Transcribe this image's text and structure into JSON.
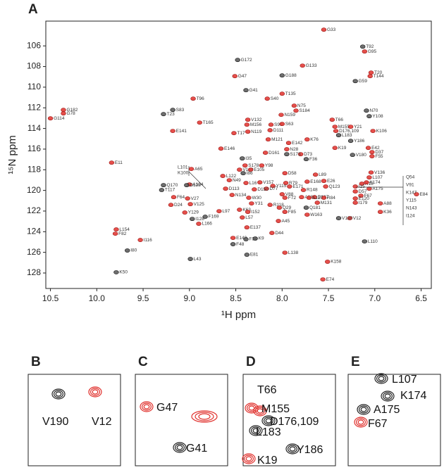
{
  "chart_data": [
    {
      "type": "spectrum",
      "panel": "A",
      "x_label": "¹H ppm",
      "y_label": "¹⁵N ppm",
      "xlim": [
        10.55,
        6.39
      ],
      "ylim": [
        129.5,
        103.6
      ],
      "xticks": [
        {
          "value": 10.5,
          "label": "10.5"
        },
        {
          "value": 10,
          "label": "10.0"
        },
        {
          "value": 9.5,
          "label": "9.5"
        },
        {
          "value": 9,
          "label": "9.0"
        },
        {
          "value": 8.5,
          "label": "8.5"
        },
        {
          "value": 8,
          "label": "8.0"
        },
        {
          "value": 7.5,
          "label": "7.5"
        },
        {
          "value": 7,
          "label": "7.0"
        },
        {
          "value": 6.5,
          "label": "6.5"
        }
      ],
      "yticks": [
        106,
        108,
        110,
        112,
        114,
        116,
        118,
        120,
        122,
        124,
        126,
        128
      ],
      "series": [
        {
          "color": "#e0302c",
          "labels": [
            "G33",
            "G95",
            "G133",
            "G47",
            "T20",
            "T144",
            "T135",
            "S40",
            "T96",
            "G182",
            "G78",
            "G114",
            "N75",
            "S184",
            "N159",
            "V132",
            "T66",
            "M156",
            "S90",
            "S63",
            "M155",
            "Y21",
            "D176,109",
            "N119",
            "D111",
            "T165",
            "E141",
            "T17",
            "K106",
            "E142",
            "M121",
            "K76",
            "N28",
            "E42",
            "K19",
            "E146",
            "D37",
            "F55",
            "D161",
            "D73",
            "S178",
            "Y98",
            "E11",
            "A65",
            "L122",
            "V149",
            "E105",
            "L16",
            "N49",
            "V157",
            "Y115",
            "D77",
            "D58",
            "E171",
            "L89",
            "V136",
            "R18",
            "L107",
            "K174",
            "A175",
            "D57",
            "I15",
            "F67",
            "A104",
            "F64",
            "V27",
            "D24",
            "V125",
            "N134",
            "D113",
            "D150",
            "W30",
            "Y31",
            "K63",
            "V88",
            "F72",
            "R79",
            "A182",
            "D187",
            "R148",
            "E168",
            "E26",
            "Q123",
            "R84",
            "A127",
            "M131",
            "I179",
            "E120",
            "A88",
            "K36",
            "E84",
            "I152",
            "R118",
            "Q29",
            "F85",
            "W163",
            "V12",
            "Y129",
            "L97",
            "L166",
            "L57",
            "A45",
            "E137",
            "D44",
            "E140",
            "L154",
            "F82",
            "I116",
            "L138",
            "K158",
            "E74"
          ],
          "x": [
            7.55,
            7.11,
            7.78,
            8.51,
            7.04,
            7.05,
            8.0,
            8.16,
            8.96,
            10.36,
            10.36,
            10.5,
            7.87,
            7.85,
            8.01,
            8.37,
            7.46,
            8.38,
            8.12,
            8.0,
            7.43,
            7.26,
            7.42,
            8.37,
            8.13,
            8.89,
            9.18,
            8.52,
            7.02,
            7.93,
            8.15,
            7.73,
            7.95,
            7.07,
            7.43,
            8.66,
            7.03,
            7.03,
            8.18,
            7.8,
            8.4,
            8.22,
            9.84,
            8.98,
            8.64,
            8.46,
            8.34,
            8.39,
            8.57,
            8.24,
            8.1,
            8.17,
            7.97,
            7.92,
            7.64,
            7.04,
            7.14,
            7.06,
            7.09,
            7.06,
            7.21,
            7.21,
            7.15,
            9.0,
            9.17,
            9.02,
            9.2,
            8.99,
            8.54,
            8.61,
            8.3,
            8.36,
            8.33,
            8.46,
            8.0,
            7.97,
            7.96,
            7.79,
            7.65,
            7.77,
            7.73,
            7.55,
            7.53,
            7.55,
            7.71,
            7.62,
            7.21,
            7.21,
            6.94,
            6.94,
            6.55,
            8.37,
            8.13,
            8.03,
            7.97,
            7.73,
            7.27,
            9.05,
            8.68,
            8.9,
            8.43,
            8.04,
            8.38,
            8.11,
            8.53,
            9.79,
            9.8,
            9.53,
            7.97,
            7.51,
            7.56
          ],
          "y": [
            104.43,
            106.54,
            107.91,
            108.93,
            108.59,
            108.93,
            110.63,
            111.11,
            111.11,
            112.2,
            112.54,
            113.02,
            111.79,
            112.27,
            112.68,
            113.15,
            113.15,
            113.63,
            113.63,
            113.56,
            113.83,
            113.83,
            114.24,
            114.31,
            114.17,
            113.43,
            114.24,
            114.45,
            114.24,
            115.4,
            115.06,
            115.06,
            116.01,
            115.88,
            115.88,
            115.95,
            116.29,
            116.69,
            116.35,
            116.49,
            117.58,
            117.58,
            117.31,
            117.92,
            118.6,
            117.99,
            117.99,
            119.28,
            119.01,
            119.22,
            119.56,
            119.83,
            118.33,
            119.62,
            118.47,
            118.26,
            119.35,
            118.74,
            119.22,
            119.83,
            120.1,
            119.62,
            120.51,
            119.42,
            120.65,
            120.78,
            121.4,
            121.33,
            120.44,
            119.83,
            119.9,
            120.71,
            121.26,
            121.87,
            120.37,
            120.71,
            119.28,
            120.65,
            120.65,
            119.96,
            119.15,
            119.08,
            119.62,
            120.71,
            120.71,
            121.19,
            121.19,
            120.78,
            121.26,
            122.08,
            120.37,
            122.08,
            121.4,
            121.67,
            122.08,
            122.35,
            122.69,
            122.14,
            122.01,
            123.23,
            122.62,
            122.96,
            123.58,
            124.12,
            124.6,
            123.78,
            124.19,
            124.8,
            126.03,
            126.91,
            128.62
          ]
        },
        {
          "color": "#555555",
          "labels": [
            "T92",
            "G172",
            "G188",
            "G59",
            "G41",
            "S83",
            "T23",
            "N70",
            "Y108",
            "L183",
            "Y186",
            "S173",
            "V180",
            "I35",
            "F36",
            "I86",
            "Q170",
            "D128",
            "T117",
            "Q181",
            "V190",
            "I128",
            "F169",
            "F48",
            "F34",
            "K9",
            "L110",
            "I80",
            "L43",
            "E81",
            "K50"
          ],
          "x": [
            7.13,
            8.48,
            8.0,
            7.21,
            8.39,
            9.18,
            9.28,
            7.09,
            7.06,
            7.39,
            7.26,
            7.95,
            7.24,
            8.43,
            7.74,
            8.42,
            9.28,
            9.03,
            9.3,
            7.74,
            7.39,
            8.97,
            8.83,
            8.53,
            8.39,
            8.29,
            7.11,
            9.67,
            8.99,
            8.38,
            9.79
          ],
          "y": [
            106.07,
            107.36,
            108.86,
            109.41,
            110.29,
            112.2,
            112.61,
            112.27,
            112.81,
            114.65,
            115.2,
            116.49,
            116.56,
            116.9,
            116.97,
            118.33,
            119.49,
            119.49,
            119.96,
            121.67,
            122.69,
            122.76,
            122.55,
            125.21,
            124.73,
            124.66,
            124.94,
            125.82,
            126.64,
            126.23,
            127.93
          ]
        }
      ],
      "callouts": [
        [
          "Q54",
          "V91",
          "K147",
          "Y115",
          "N143",
          "I124"
        ],
        [
          "L101",
          "K100"
        ]
      ]
    },
    {
      "type": "inset",
      "panel": "B",
      "labels": [
        "V190",
        "V12"
      ]
    },
    {
      "type": "inset",
      "panel": "C",
      "labels": [
        "G47",
        "G41"
      ]
    },
    {
      "type": "inset",
      "panel": "D",
      "labels": [
        "T66",
        "M155",
        "D176,109",
        "L183",
        "Y186",
        "K19"
      ]
    },
    {
      "type": "inset",
      "panel": "E",
      "labels": [
        "L107",
        "K174",
        "A175",
        "F67"
      ]
    }
  ]
}
